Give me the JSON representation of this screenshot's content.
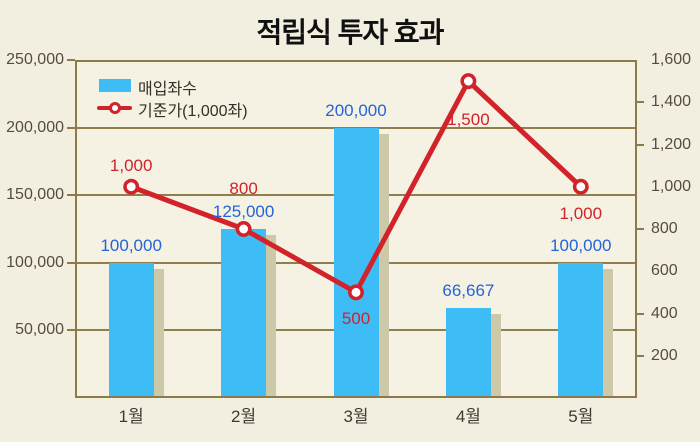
{
  "title": "적립식 투자 효과",
  "legend": {
    "bar_label": "매입좌수",
    "line_label": "기준가(1,000좌)"
  },
  "chart_data": {
    "type": "bar+line combo",
    "title": "적립식 투자 효과",
    "categories": [
      "1월",
      "2월",
      "3월",
      "4월",
      "5월"
    ],
    "series": [
      {
        "name": "매입좌수",
        "type": "bar",
        "axis": "left",
        "values": [
          100000,
          125000,
          200000,
          66667,
          100000
        ],
        "data_labels": [
          "100,000",
          "125,000",
          "200,000",
          "66,667",
          "100,000"
        ],
        "color": "#3ebcf5"
      },
      {
        "name": "기준가(1,000좌)",
        "type": "line",
        "axis": "right",
        "values": [
          1000,
          800,
          500,
          1500,
          1000
        ],
        "data_labels": [
          "1,000",
          "800",
          "500",
          "1,500",
          "1,000"
        ],
        "color": "#d2222a"
      }
    ],
    "left_axis": {
      "min": 0,
      "max": 250000,
      "step": 50000,
      "tick_labels": [
        "250,000",
        "200,000",
        "150,000",
        "100,000",
        "50,000"
      ]
    },
    "right_axis": {
      "min": 0,
      "max": 1600,
      "step": 200,
      "tick_labels": [
        "1,600",
        "1,400",
        "1,200",
        "1,000",
        "800",
        "600",
        "400",
        "200"
      ],
      "marked_ticks": [
        1400,
        1200,
        800,
        400,
        200
      ]
    },
    "grid": true,
    "legend_position": "top-left inside plot"
  },
  "colors": {
    "background": "#f3efe0",
    "plot_border": "#8c7b49",
    "bar": "#3ebcf5",
    "bar_shadow": "#cdc9a8",
    "line": "#d2222a",
    "marker_fill": "#ffffff",
    "bar_label_text": "#2563d9",
    "line_label_text": "#d2222a",
    "axis_text": "#564c3e",
    "title_text": "#101010"
  }
}
